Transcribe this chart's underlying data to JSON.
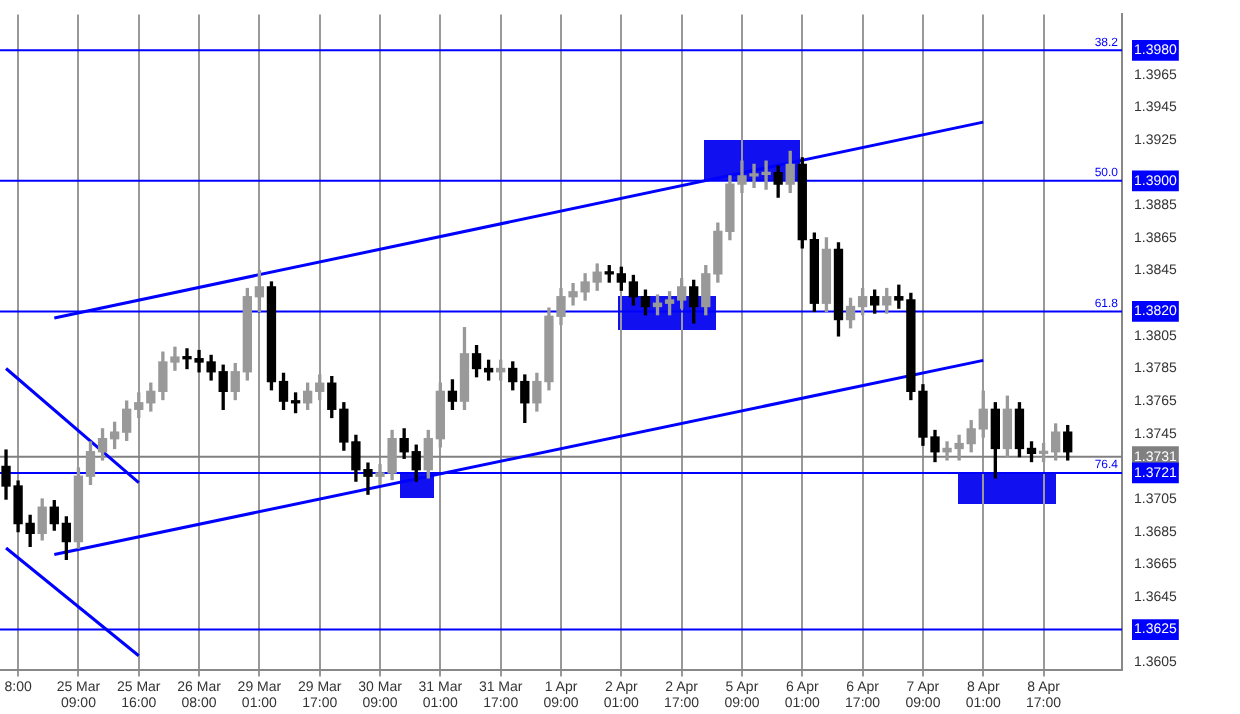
{
  "chart_data": {
    "type": "candlestick",
    "colors": [
      "#000000",
      "#000000",
      "#000000",
      "#999999",
      "#000000",
      "#000000",
      "#999999",
      "#999999",
      "#999999",
      "#999999",
      "#999999",
      "#999999",
      "#999999",
      "#999999",
      "#999999",
      "#000000",
      "#000000",
      "#000000",
      "#000000",
      "#999999",
      "#999999",
      "#999999",
      "#000000",
      "#000000",
      "#000000",
      "#999999",
      "#999999",
      "#000000",
      "#000000",
      "#000000",
      "#000000",
      "#999999",
      "#999999",
      "#000000",
      "#000000",
      "#999999",
      "#999999",
      "#000000",
      "#999999",
      "#000000",
      "#000000",
      "#999999",
      "#000000",
      "#000000",
      "#999999",
      "#999999",
      "#999999",
      "#999999",
      "#999999",
      "#999999",
      "#000000",
      "#000000",
      "#000000",
      "#000000",
      "#999999",
      "#999999",
      "#999999",
      "#000000",
      "#999999",
      "#999999",
      "#999999",
      "#999999",
      "#999999",
      "#999999",
      "#000000",
      "#999999",
      "#000000",
      "#000000",
      "#999999",
      "#000000",
      "#999999",
      "#999999",
      "#000000",
      "#999999",
      "#000000",
      "#000000",
      "#000000",
      "#000000",
      "#999999",
      "#999999",
      "#999999",
      "#999999",
      "#000000",
      "#999999",
      "#000000",
      "#000000",
      "#999999",
      "#999999",
      "#000000",
      null,
      null,
      null,
      null
    ],
    "categories": [
      null,
      "8:00",
      null,
      null,
      null,
      null,
      "25 Mar 09:00",
      null,
      null,
      null,
      null,
      "25 Mar 16:00",
      null,
      null,
      null,
      null,
      "26 Mar 08:00",
      null,
      null,
      null,
      null,
      "29 Mar 01:00",
      null,
      null,
      null,
      null,
      "29 Mar 17:00",
      null,
      null,
      null,
      null,
      "30 Mar 09:00",
      null,
      null,
      null,
      null,
      "31 Mar 01:00",
      null,
      null,
      null,
      null,
      "31 Mar 17:00",
      null,
      null,
      null,
      null,
      "1 Apr 09:00",
      null,
      null,
      null,
      null,
      "2 Apr 01:00",
      null,
      null,
      null,
      null,
      "2 Apr 17:00",
      null,
      null,
      null,
      null,
      "5 Apr 09:00",
      null,
      null,
      null,
      null,
      "6 Apr 01:00",
      null,
      null,
      null,
      null,
      "6 Apr 17:00",
      null,
      null,
      null,
      null,
      "7 Apr 09:00",
      null,
      null,
      null,
      null,
      "8 Apr 01:00",
      null,
      null,
      null,
      null,
      "8 Apr 17:00",
      null,
      null,
      null,
      null,
      null,
      null
    ],
    "ohlc": [
      [
        1.3725,
        1.3735,
        1.3705,
        1.3713
      ],
      [
        1.3713,
        1.3716,
        1.3685,
        1.369
      ],
      [
        1.369,
        1.3695,
        1.3676,
        1.3684
      ],
      [
        1.3684,
        1.3705,
        1.368,
        1.37
      ],
      [
        1.37,
        1.3704,
        1.3686,
        1.369
      ],
      [
        1.369,
        1.3694,
        1.3668,
        1.3679
      ],
      [
        1.3679,
        1.3724,
        1.3675,
        1.3719
      ],
      [
        1.3719,
        1.374,
        1.3714,
        1.3734
      ],
      [
        1.3734,
        1.3748,
        1.3729,
        1.3742
      ],
      [
        1.3742,
        1.3752,
        1.3736,
        1.3746
      ],
      [
        1.3746,
        1.3765,
        1.3741,
        1.376
      ],
      [
        1.376,
        1.377,
        1.3755,
        1.3764
      ],
      [
        1.3764,
        1.3776,
        1.3759,
        1.3771
      ],
      [
        1.3771,
        1.3795,
        1.3766,
        1.3789
      ],
      [
        1.3789,
        1.3798,
        1.3784,
        1.3792
      ],
      [
        1.3792,
        1.3797,
        1.3785,
        1.3791
      ],
      [
        1.3791,
        1.3796,
        1.3783,
        1.3789
      ],
      [
        1.3789,
        1.3793,
        1.3778,
        1.3783
      ],
      [
        1.3783,
        1.3787,
        1.376,
        1.3771
      ],
      [
        1.3771,
        1.3788,
        1.3766,
        1.3783
      ],
      [
        1.3783,
        1.3834,
        1.3778,
        1.3829
      ],
      [
        1.3829,
        1.3845,
        1.382,
        1.3835
      ],
      [
        1.3835,
        1.3838,
        1.3772,
        1.3777
      ],
      [
        1.3777,
        1.3782,
        1.376,
        1.3765
      ],
      [
        1.3765,
        1.377,
        1.3758,
        1.3764
      ],
      [
        1.3764,
        1.3776,
        1.376,
        1.3771
      ],
      [
        1.3771,
        1.3781,
        1.3766,
        1.3776
      ],
      [
        1.3776,
        1.378,
        1.3755,
        1.376
      ],
      [
        1.376,
        1.3764,
        1.3735,
        1.374
      ],
      [
        1.374,
        1.3744,
        1.3716,
        1.3723
      ],
      [
        1.3723,
        1.3727,
        1.3708,
        1.3719
      ],
      [
        1.3719,
        1.3726,
        1.3714,
        1.3721
      ],
      [
        1.3721,
        1.3747,
        1.3717,
        1.3742
      ],
      [
        1.3742,
        1.3748,
        1.373,
        1.3734
      ],
      [
        1.3734,
        1.3738,
        1.3716,
        1.3723
      ],
      [
        1.3723,
        1.3747,
        1.3718,
        1.3742
      ],
      [
        1.3742,
        1.3776,
        1.3737,
        1.3771
      ],
      [
        1.3771,
        1.3778,
        1.376,
        1.3765
      ],
      [
        1.3765,
        1.381,
        1.376,
        1.3794
      ],
      [
        1.3794,
        1.3799,
        1.378,
        1.3785
      ],
      [
        1.3785,
        1.379,
        1.3778,
        1.3783
      ],
      [
        1.3783,
        1.379,
        1.3778,
        1.3785
      ],
      [
        1.3785,
        1.3789,
        1.3772,
        1.3777
      ],
      [
        1.3777,
        1.3781,
        1.3752,
        1.3764
      ],
      [
        1.3764,
        1.3782,
        1.3759,
        1.3777
      ],
      [
        1.3777,
        1.3822,
        1.3772,
        1.3817
      ],
      [
        1.3817,
        1.3834,
        1.3812,
        1.3829
      ],
      [
        1.3829,
        1.3837,
        1.3824,
        1.3832
      ],
      [
        1.3832,
        1.3843,
        1.3827,
        1.3838
      ],
      [
        1.3838,
        1.3849,
        1.3833,
        1.3844
      ],
      [
        1.3844,
        1.3848,
        1.3838,
        1.3843
      ],
      [
        1.3843,
        1.3847,
        1.3833,
        1.3838
      ],
      [
        1.3838,
        1.3842,
        1.3824,
        1.3829
      ],
      [
        1.3829,
        1.3833,
        1.3818,
        1.3823
      ],
      [
        1.3823,
        1.383,
        1.3818,
        1.3825
      ],
      [
        1.3825,
        1.3832,
        1.3818,
        1.3827
      ],
      [
        1.3827,
        1.384,
        1.3822,
        1.3835
      ],
      [
        1.3835,
        1.3839,
        1.3813,
        1.3823
      ],
      [
        1.3823,
        1.3848,
        1.3818,
        1.3843
      ],
      [
        1.3843,
        1.3874,
        1.3838,
        1.3869
      ],
      [
        1.3869,
        1.3903,
        1.3864,
        1.3898
      ],
      [
        1.3898,
        1.3912,
        1.3893,
        1.3903
      ],
      [
        1.3903,
        1.391,
        1.3896,
        1.3904
      ],
      [
        1.3904,
        1.3912,
        1.3895,
        1.3905
      ],
      [
        1.3905,
        1.3909,
        1.389,
        1.3898
      ],
      [
        1.3898,
        1.3918,
        1.3893,
        1.391
      ],
      [
        1.391,
        1.3914,
        1.3859,
        1.3864
      ],
      [
        1.3864,
        1.3868,
        1.382,
        1.3825
      ],
      [
        1.3825,
        1.3865,
        1.382,
        1.3858
      ],
      [
        1.3858,
        1.3862,
        1.3805,
        1.3815
      ],
      [
        1.3815,
        1.3828,
        1.381,
        1.3823
      ],
      [
        1.3823,
        1.3834,
        1.3818,
        1.3829
      ],
      [
        1.3829,
        1.3833,
        1.3819,
        1.3824
      ],
      [
        1.3824,
        1.3834,
        1.3819,
        1.3829
      ],
      [
        1.3829,
        1.3836,
        1.3822,
        1.3827
      ],
      [
        1.3827,
        1.3831,
        1.3766,
        1.3771
      ],
      [
        1.3771,
        1.3775,
        1.3738,
        1.3743
      ],
      [
        1.3743,
        1.3747,
        1.3728,
        1.3734
      ],
      [
        1.3734,
        1.374,
        1.3729,
        1.3736
      ],
      [
        1.3736,
        1.3744,
        1.3729,
        1.3739
      ],
      [
        1.3739,
        1.3753,
        1.3734,
        1.3748
      ],
      [
        1.3748,
        1.3771,
        1.3743,
        1.376
      ],
      [
        1.376,
        1.3764,
        1.3718,
        1.3736
      ],
      [
        1.3736,
        1.3768,
        1.3731,
        1.376
      ],
      [
        1.376,
        1.3764,
        1.3731,
        1.3736
      ],
      [
        1.3736,
        1.374,
        1.3728,
        1.3733
      ],
      [
        1.3733,
        1.3739,
        1.3728,
        1.3734
      ],
      [
        1.3734,
        1.3751,
        1.3729,
        1.3746
      ],
      [
        1.3746,
        1.375,
        1.3729,
        1.3734
      ],
      null,
      null,
      null,
      null
    ],
    "series": [
      {
        "type": "line",
        "color": "#0000ff",
        "values": [
          null,
          null,
          null,
          null,
          1.3816,
          null,
          null,
          null,
          null,
          null,
          null,
          null,
          null,
          null,
          null,
          null,
          null,
          null,
          null,
          null,
          null,
          null,
          null,
          null,
          null,
          null,
          null,
          null,
          null,
          null,
          null,
          null,
          null,
          null,
          null,
          null,
          null,
          null,
          null,
          null,
          null,
          null,
          null,
          null,
          null,
          null,
          null,
          null,
          null,
          null,
          null,
          null,
          null,
          null,
          null,
          null,
          null,
          null,
          null,
          null,
          null,
          null,
          null,
          null,
          null,
          null,
          null,
          null,
          null,
          null,
          null,
          null,
          null,
          null,
          null,
          null,
          null,
          null,
          null,
          null,
          null,
          1.3936,
          null,
          null,
          null,
          null,
          null,
          null,
          null,
          null,
          null,
          null,
          null
        ]
      },
      {
        "type": "line",
        "color": "#0000ff",
        "values": [
          null,
          null,
          null,
          null,
          1.3671,
          null,
          null,
          null,
          null,
          null,
          null,
          null,
          null,
          null,
          null,
          null,
          null,
          null,
          null,
          null,
          null,
          null,
          null,
          null,
          null,
          null,
          null,
          null,
          null,
          null,
          null,
          null,
          null,
          null,
          null,
          null,
          null,
          null,
          null,
          null,
          null,
          null,
          null,
          null,
          null,
          null,
          null,
          null,
          null,
          null,
          null,
          null,
          null,
          null,
          null,
          null,
          null,
          null,
          null,
          null,
          null,
          null,
          null,
          null,
          null,
          null,
          null,
          null,
          null,
          null,
          null,
          null,
          null,
          null,
          null,
          null,
          null,
          null,
          null,
          null,
          null,
          1.379,
          null,
          null,
          null,
          null,
          null,
          null,
          null,
          null,
          null,
          null,
          null
        ]
      },
      {
        "type": "line",
        "color": "#0000ff",
        "values": [
          1.3785,
          null,
          null,
          null,
          null,
          null,
          null,
          null,
          null,
          null,
          null,
          1.3715,
          null,
          null,
          null,
          null,
          null,
          null,
          null,
          null,
          null,
          null,
          null,
          null,
          null,
          null,
          null,
          null,
          null,
          null,
          null,
          null,
          null,
          null,
          null,
          null,
          null,
          null,
          null,
          null,
          null,
          null,
          null,
          null,
          null,
          null,
          null,
          null,
          null,
          null,
          null,
          null,
          null,
          null,
          null,
          null,
          null,
          null,
          null,
          null,
          null,
          null,
          null,
          null,
          null,
          null,
          null,
          null,
          null,
          null,
          null,
          null,
          null,
          null,
          null,
          null,
          null,
          null,
          null,
          null,
          null,
          null,
          null,
          null,
          null,
          null,
          null,
          null,
          null,
          null,
          null,
          null,
          null
        ]
      },
      {
        "type": "line",
        "color": "#0000ff",
        "values": [
          1.3675,
          null,
          null,
          null,
          null,
          null,
          null,
          null,
          null,
          null,
          null,
          1.3609,
          null,
          null,
          null,
          null,
          null,
          null,
          null,
          null,
          null,
          null,
          null,
          null,
          null,
          null,
          null,
          null,
          null,
          null,
          null,
          null,
          null,
          null,
          null,
          null,
          null,
          null,
          null,
          null,
          null,
          null,
          null,
          null,
          null,
          null,
          null,
          null,
          null,
          null,
          null,
          null,
          null,
          null,
          null,
          null,
          null,
          null,
          null,
          null,
          null,
          null,
          null,
          null,
          null,
          null,
          null,
          null,
          null,
          null,
          null,
          null,
          null,
          null,
          null,
          null,
          null,
          null,
          null,
          null,
          null,
          null,
          null,
          null,
          null,
          null,
          null,
          null,
          null,
          null,
          null,
          null,
          null
        ]
      }
    ],
    "ylim": [
      1.36,
      1.4002
    ],
    "yticks": [
      {
        "value": 1.398,
        "label": "1.3980"
      },
      1.3965,
      1.3945,
      1.3925,
      {
        "value": 1.39,
        "label": "1.3900"
      },
      1.3885,
      1.3865,
      1.3845,
      {
        "value": 1.382,
        "label": "1.3820"
      },
      1.3805,
      1.3785,
      1.3765,
      1.3745,
      1.3731,
      1.3721,
      1.3705,
      1.3685,
      1.3665,
      1.3645,
      {
        "value": 1.3625,
        "label": "1.3625"
      },
      1.3605
    ],
    "annotations": [
      {
        "text": "38.2",
        "y": 1.398
      },
      {
        "text": "50.0",
        "y": 1.39
      },
      {
        "text": "61.8",
        "y": 1.382
      },
      {
        "text": "76.4",
        "y": 1.3721
      }
    ],
    "ref_lines": [
      {
        "axis": "y",
        "value": 1.398,
        "color": "#0000ff"
      },
      {
        "axis": "y",
        "value": 1.39,
        "color": "#0000ff"
      },
      {
        "axis": "y",
        "value": 1.382,
        "color": "#0000ff"
      },
      {
        "axis": "y",
        "value": 1.3721,
        "color": "#0000ff"
      },
      {
        "axis": "y",
        "value": 1.3625,
        "color": "#0000ff"
      },
      {
        "axis": "y",
        "value": 1.3731,
        "color": "#808080"
      }
    ],
    "grid": "x",
    "legend": false
  }
}
